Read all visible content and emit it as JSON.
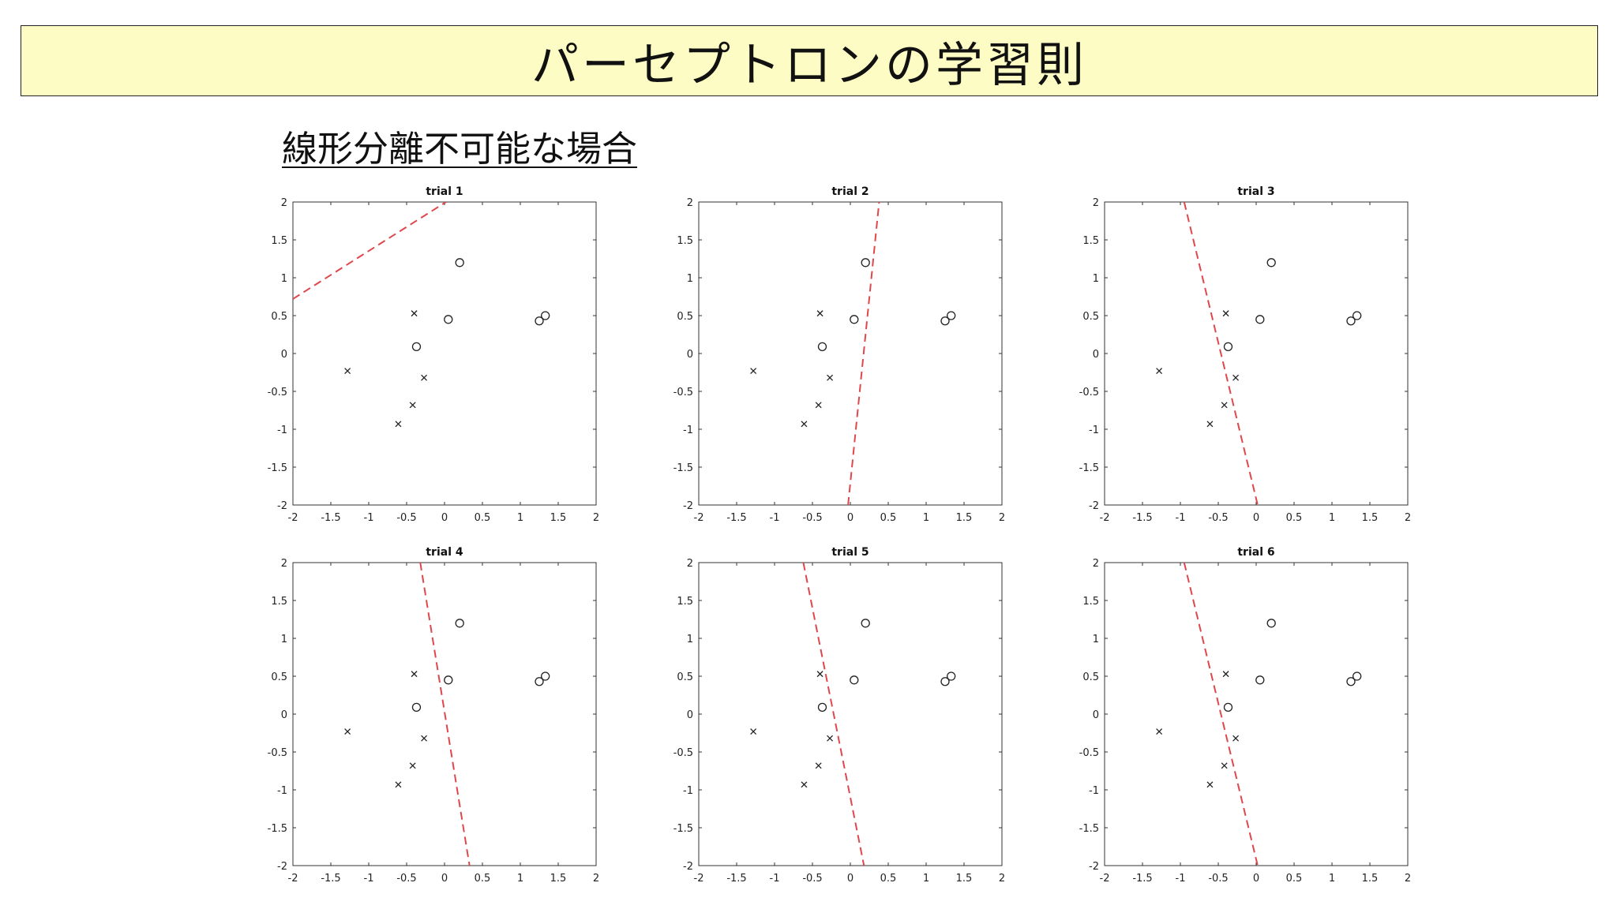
{
  "slide": {
    "title": "パーセプトロンの学習則",
    "subtitle": "線形分離不可能な場合"
  },
  "colors": {
    "title_background": "#fdfcc4",
    "boundary_line": "#e0474c",
    "marker": "#222222"
  },
  "chart_data": [
    {
      "type": "scatter",
      "title": "trial 1",
      "xlim": [
        -2,
        2
      ],
      "ylim": [
        -2,
        2
      ],
      "xticks": [
        -2,
        -1.5,
        -1,
        -0.5,
        0,
        0.5,
        1,
        1.5,
        2
      ],
      "yticks": [
        -2,
        -1.5,
        -1,
        -0.5,
        0,
        0.5,
        1,
        1.5,
        2
      ],
      "series": [
        {
          "marker": "o",
          "points": [
            [
              0.2,
              1.2
            ],
            [
              0.05,
              0.45
            ],
            [
              1.25,
              0.43
            ],
            [
              1.33,
              0.5
            ],
            [
              -0.37,
              0.09
            ]
          ]
        },
        {
          "marker": "x",
          "points": [
            [
              -0.4,
              0.53
            ],
            [
              -1.28,
              -0.23
            ],
            [
              -0.27,
              -0.32
            ],
            [
              -0.42,
              -0.68
            ],
            [
              -0.61,
              -0.93
            ]
          ]
        }
      ],
      "boundary": [
        [
          -2,
          0.72
        ],
        [
          0.02,
          2
        ]
      ]
    },
    {
      "type": "scatter",
      "title": "trial 2",
      "xlim": [
        -2,
        2
      ],
      "ylim": [
        -2,
        2
      ],
      "xticks": [
        -2,
        -1.5,
        -1,
        -0.5,
        0,
        0.5,
        1,
        1.5,
        2
      ],
      "yticks": [
        -2,
        -1.5,
        -1,
        -0.5,
        0,
        0.5,
        1,
        1.5,
        2
      ],
      "series": [
        {
          "marker": "o",
          "points": [
            [
              0.2,
              1.2
            ],
            [
              0.05,
              0.45
            ],
            [
              1.25,
              0.43
            ],
            [
              1.33,
              0.5
            ],
            [
              -0.37,
              0.09
            ]
          ]
        },
        {
          "marker": "x",
          "points": [
            [
              -0.4,
              0.53
            ],
            [
              -1.28,
              -0.23
            ],
            [
              -0.27,
              -0.32
            ],
            [
              -0.42,
              -0.68
            ],
            [
              -0.61,
              -0.93
            ]
          ]
        }
      ],
      "boundary": [
        [
          -0.03,
          -2
        ],
        [
          0.38,
          2
        ]
      ]
    },
    {
      "type": "scatter",
      "title": "trial 3",
      "xlim": [
        -2,
        2
      ],
      "ylim": [
        -2,
        2
      ],
      "xticks": [
        -2,
        -1.5,
        -1,
        -0.5,
        0,
        0.5,
        1,
        1.5,
        2
      ],
      "yticks": [
        -2,
        -1.5,
        -1,
        -0.5,
        0,
        0.5,
        1,
        1.5,
        2
      ],
      "series": [
        {
          "marker": "o",
          "points": [
            [
              0.2,
              1.2
            ],
            [
              0.05,
              0.45
            ],
            [
              1.25,
              0.43
            ],
            [
              1.33,
              0.5
            ],
            [
              -0.37,
              0.09
            ]
          ]
        },
        {
          "marker": "x",
          "points": [
            [
              -0.4,
              0.53
            ],
            [
              -1.28,
              -0.23
            ],
            [
              -0.27,
              -0.32
            ],
            [
              -0.42,
              -0.68
            ],
            [
              -0.61,
              -0.93
            ]
          ]
        }
      ],
      "boundary": [
        [
          -0.95,
          2
        ],
        [
          0.02,
          -2
        ]
      ]
    },
    {
      "type": "scatter",
      "title": "trial 4",
      "xlim": [
        -2,
        2
      ],
      "ylim": [
        -2,
        2
      ],
      "xticks": [
        -2,
        -1.5,
        -1,
        -0.5,
        0,
        0.5,
        1,
        1.5,
        2
      ],
      "yticks": [
        -2,
        -1.5,
        -1,
        -0.5,
        0,
        0.5,
        1,
        1.5,
        2
      ],
      "series": [
        {
          "marker": "o",
          "points": [
            [
              0.2,
              1.2
            ],
            [
              0.05,
              0.45
            ],
            [
              1.25,
              0.43
            ],
            [
              1.33,
              0.5
            ],
            [
              -0.37,
              0.09
            ]
          ]
        },
        {
          "marker": "x",
          "points": [
            [
              -0.4,
              0.53
            ],
            [
              -1.28,
              -0.23
            ],
            [
              -0.27,
              -0.32
            ],
            [
              -0.42,
              -0.68
            ],
            [
              -0.61,
              -0.93
            ]
          ]
        }
      ],
      "boundary": [
        [
          -0.32,
          2
        ],
        [
          0.33,
          -2
        ]
      ]
    },
    {
      "type": "scatter",
      "title": "trial 5",
      "xlim": [
        -2,
        2
      ],
      "ylim": [
        -2,
        2
      ],
      "xticks": [
        -2,
        -1.5,
        -1,
        -0.5,
        0,
        0.5,
        1,
        1.5,
        2
      ],
      "yticks": [
        -2,
        -1.5,
        -1,
        -0.5,
        0,
        0.5,
        1,
        1.5,
        2
      ],
      "series": [
        {
          "marker": "o",
          "points": [
            [
              0.2,
              1.2
            ],
            [
              0.05,
              0.45
            ],
            [
              1.25,
              0.43
            ],
            [
              1.33,
              0.5
            ],
            [
              -0.37,
              0.09
            ]
          ]
        },
        {
          "marker": "x",
          "points": [
            [
              -0.4,
              0.53
            ],
            [
              -1.28,
              -0.23
            ],
            [
              -0.27,
              -0.32
            ],
            [
              -0.42,
              -0.68
            ],
            [
              -0.61,
              -0.93
            ]
          ]
        }
      ],
      "boundary": [
        [
          -0.62,
          2
        ],
        [
          0.18,
          -2
        ]
      ]
    },
    {
      "type": "scatter",
      "title": "trial 6",
      "xlim": [
        -2,
        2
      ],
      "ylim": [
        -2,
        2
      ],
      "xticks": [
        -2,
        -1.5,
        -1,
        -0.5,
        0,
        0.5,
        1,
        1.5,
        2
      ],
      "yticks": [
        -2,
        -1.5,
        -1,
        -0.5,
        0,
        0.5,
        1,
        1.5,
        2
      ],
      "series": [
        {
          "marker": "o",
          "points": [
            [
              0.2,
              1.2
            ],
            [
              0.05,
              0.45
            ],
            [
              1.25,
              0.43
            ],
            [
              1.33,
              0.5
            ],
            [
              -0.37,
              0.09
            ]
          ]
        },
        {
          "marker": "x",
          "points": [
            [
              -0.4,
              0.53
            ],
            [
              -1.28,
              -0.23
            ],
            [
              -0.27,
              -0.32
            ],
            [
              -0.42,
              -0.68
            ],
            [
              -0.61,
              -0.93
            ]
          ]
        }
      ],
      "boundary": [
        [
          -0.95,
          2
        ],
        [
          0.02,
          -2
        ]
      ]
    }
  ]
}
